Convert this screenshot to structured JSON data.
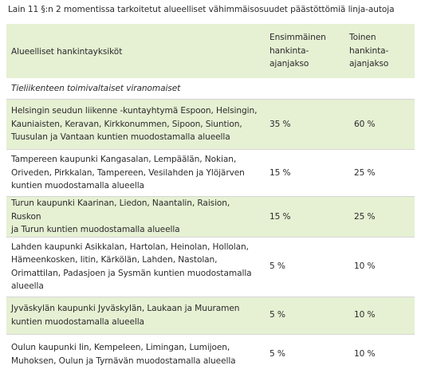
{
  "caption": "Lain 11 §:n 2 momentissa tarkoitetut alueelliset vähimmäisosuudet päästöttömiä linja-autoja",
  "table": {
    "headers": {
      "region": "Alueelliset hankintayksiköt",
      "first_line1": "Ensimmäinen",
      "first_line2": "hankinta-",
      "first_line3": "ajanjakso",
      "second_line1": "Toinen",
      "second_line2": "hankinta-",
      "second_line3": "ajanjakso"
    },
    "section": "Tieliikenteen toimivaltaiset viranomaiset",
    "rows": [
      {
        "lines": [
          "Helsingin seudun liikenne -kuntayhtymä Espoon, Helsingin,",
          "Kauniaisten, Keravan, Kirkkonummen, Sipoon, Siuntion,",
          "Tuusulan ja Vantaan kuntien muodostamalla alueella"
        ],
        "first": "35 %",
        "second": "60 %"
      },
      {
        "lines": [
          "Tampereen kaupunki Kangasalan, Lempäälän, Nokian,",
          "Oriveden, Pirkkalan, Tampereen, Vesilahden ja Ylöjärven",
          "kuntien muodostamalla alueella"
        ],
        "first": "15 %",
        "second": "25 %"
      },
      {
        "lines": [
          "Turun kaupunki Kaarinan, Liedon, Naantalin, Raision, Ruskon",
          "ja Turun kuntien muodostamalla alueella"
        ],
        "first": "15 %",
        "second": "25 %"
      },
      {
        "lines": [
          "Lahden kaupunki Asikkalan, Hartolan, Heinolan, Hollolan,",
          "Hämeenkosken, Iitin, Kärkölän, Lahden, Nastolan,",
          "Orimattilan, Padasjoen ja Sysmän kuntien muodostamalla",
          "alueella"
        ],
        "first": "5 %",
        "second": "10 %"
      },
      {
        "lines": [
          "Jyväskylän kaupunki Jyväskylän, Laukaan ja Muuramen",
          "kuntien muodostamalla alueella"
        ],
        "first": "5 %",
        "second": "10 %"
      },
      {
        "lines": [
          "Oulun kaupunki Iin, Kempeleen, Limingan, Lumijoen,",
          "Muhoksen, Oulun ja Tyrnävän muodostamalla alueella"
        ],
        "first": "5 %",
        "second": "10 %"
      }
    ],
    "colors": {
      "green_row": "#e6f0d3",
      "text": "#2b2b2b"
    }
  }
}
